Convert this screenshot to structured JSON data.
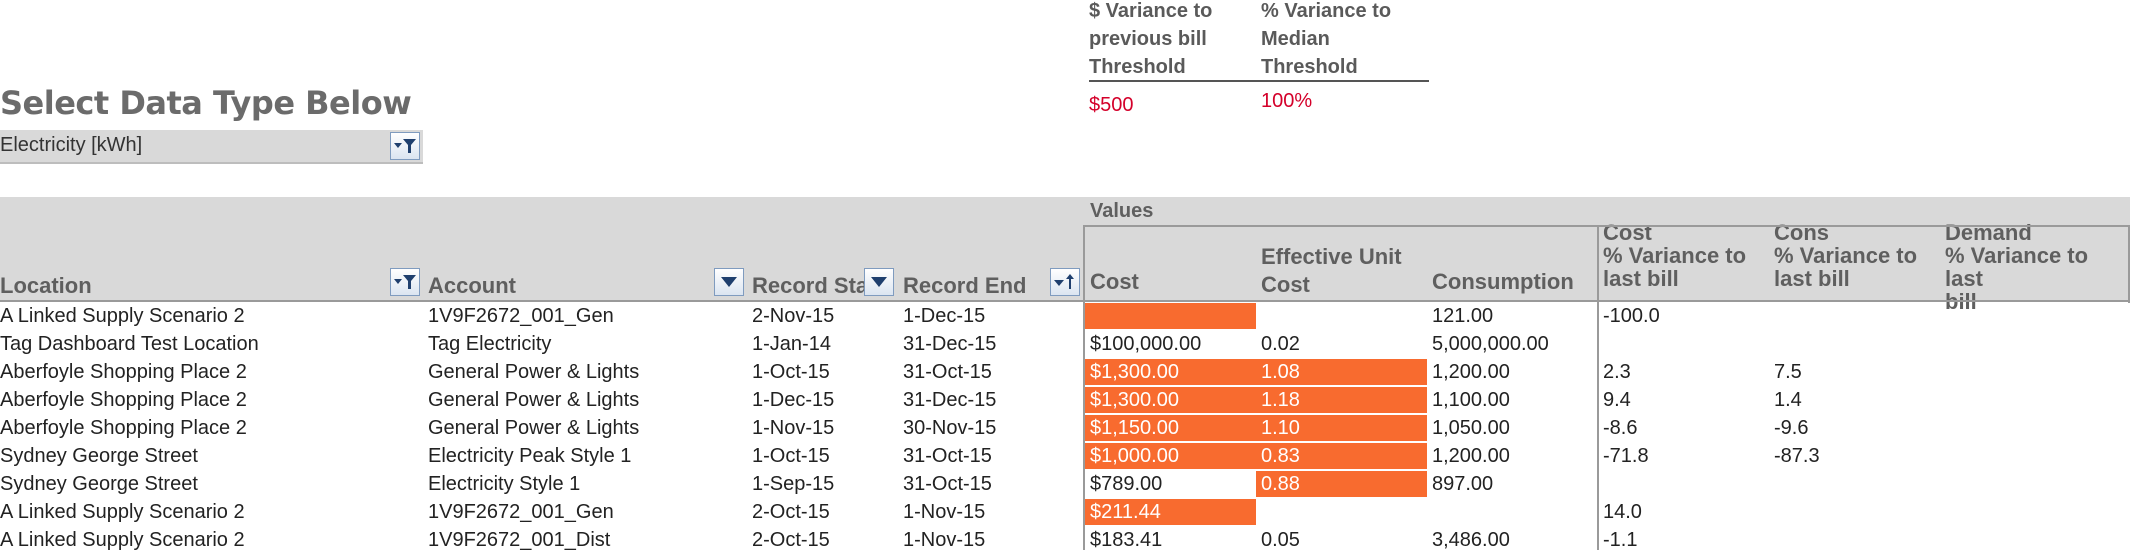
{
  "thresholds": {
    "dollar_header": [
      "$ Variance to",
      "previous bill",
      "Threshold"
    ],
    "dollar_value": "$500",
    "percent_header": [
      "% Variance to",
      "Median",
      "Threshold"
    ],
    "percent_value": "100%"
  },
  "selector": {
    "title": "Select Data Type Below",
    "value": "Electricity [kWh]"
  },
  "pivot": {
    "values_label": "Values",
    "columns": {
      "location": "Location",
      "account": "Account",
      "record_start": "Record Star",
      "record_end": "Record End",
      "cost": "Cost",
      "effective_unit_cost": [
        "Effective Unit",
        "Cost"
      ],
      "consumption": "Consumption",
      "cost_var": [
        "Cost",
        "% Variance to",
        "last bill"
      ],
      "cons_var": [
        "Cons",
        "% Variance to",
        "last bill"
      ],
      "demand_var": [
        "Demand",
        "% Variance to last",
        "bill"
      ]
    },
    "rows": [
      {
        "location": "A Linked Supply Scenario 2",
        "account": "1V9F2672_001_Gen",
        "start": "2-Nov-15",
        "end": "1-Dec-15",
        "cost": "",
        "cost_hl": true,
        "unit": "",
        "unit_hl": false,
        "cons": "121.00",
        "costvar": "-100.0",
        "consvar": ""
      },
      {
        "location": "Tag Dashboard Test Location",
        "account": "Tag Electricity",
        "start": "1-Jan-14",
        "end": "31-Dec-15",
        "cost": "$100,000.00",
        "cost_hl": false,
        "unit": "0.02",
        "unit_hl": false,
        "cons": "5,000,000.00",
        "costvar": "",
        "consvar": ""
      },
      {
        "location": "Aberfoyle Shopping Place 2",
        "account": "General Power & Lights",
        "start": "1-Oct-15",
        "end": "31-Oct-15",
        "cost": "$1,300.00",
        "cost_hl": true,
        "unit": "1.08",
        "unit_hl": true,
        "cons": "1,200.00",
        "costvar": "2.3",
        "consvar": "7.5"
      },
      {
        "location": "Aberfoyle Shopping Place 2",
        "account": "General Power & Lights",
        "start": "1-Dec-15",
        "end": "31-Dec-15",
        "cost": "$1,300.00",
        "cost_hl": true,
        "unit": "1.18",
        "unit_hl": true,
        "cons": "1,100.00",
        "costvar": "9.4",
        "consvar": "1.4"
      },
      {
        "location": "Aberfoyle Shopping Place 2",
        "account": "General Power & Lights",
        "start": "1-Nov-15",
        "end": "30-Nov-15",
        "cost": "$1,150.00",
        "cost_hl": true,
        "unit": "1.10",
        "unit_hl": true,
        "cons": "1,050.00",
        "costvar": "-8.6",
        "consvar": "-9.6"
      },
      {
        "location": "Sydney George Street",
        "account": "Electricity Peak Style 1",
        "start": "1-Oct-15",
        "end": "31-Oct-15",
        "cost": "$1,000.00",
        "cost_hl": true,
        "unit": "0.83",
        "unit_hl": true,
        "cons": "1,200.00",
        "costvar": "-71.8",
        "consvar": "-87.3"
      },
      {
        "location": "Sydney George Street",
        "account": "Electricity Style 1",
        "start": "1-Sep-15",
        "end": "31-Oct-15",
        "cost": "$789.00",
        "cost_hl": false,
        "unit": "0.88",
        "unit_hl": true,
        "cons": "897.00",
        "costvar": "",
        "consvar": ""
      },
      {
        "location": "A Linked Supply Scenario 2",
        "account": "1V9F2672_001_Gen",
        "start": "2-Oct-15",
        "end": "1-Nov-15",
        "cost": "$211.44",
        "cost_hl": true,
        "unit": "",
        "unit_hl": false,
        "cons": "",
        "costvar": "14.0",
        "consvar": ""
      },
      {
        "location": "A Linked Supply Scenario 2",
        "account": "1V9F2672_001_Dist",
        "start": "2-Oct-15",
        "end": "1-Nov-15",
        "cost": "$183.41",
        "cost_hl": false,
        "unit": "0.05",
        "unit_hl": false,
        "cons": "3,486.00",
        "costvar": "-1.1",
        "consvar": ""
      }
    ]
  },
  "colors": {
    "highlight": "#f86b2f",
    "threshold_red": "#d4002a",
    "header_gray": "#d9d9d9"
  }
}
